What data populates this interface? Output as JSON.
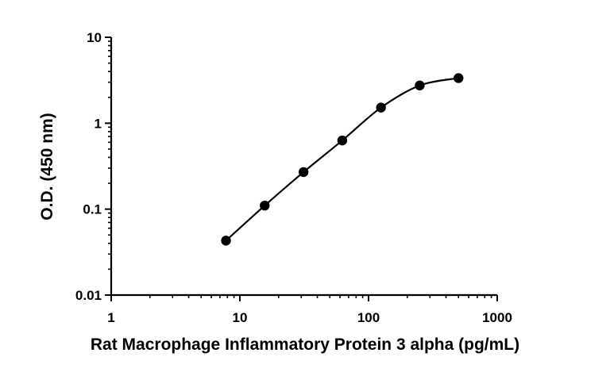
{
  "chart_data": {
    "type": "scatter",
    "title": "",
    "xlabel": "Rat Macrophage Inflammatory Protein 3 alpha (pg/mL)",
    "ylabel": "O.D. (450 nm)",
    "xscale": "log",
    "yscale": "log",
    "xlim": [
      1,
      1000
    ],
    "ylim": [
      0.01,
      10
    ],
    "x_ticks": [
      "1",
      "10",
      "100",
      "1000"
    ],
    "y_ticks": [
      "0.01",
      "0.1",
      "1",
      "10"
    ],
    "grid": false,
    "legend": "none",
    "series": [
      {
        "x": [
          7.8,
          15.6,
          31.25,
          62.5,
          125,
          250,
          500
        ],
        "y": [
          0.043,
          0.11,
          0.27,
          0.63,
          1.52,
          2.75,
          3.35
        ]
      }
    ],
    "fit_curve": "four-parameter logistic"
  }
}
